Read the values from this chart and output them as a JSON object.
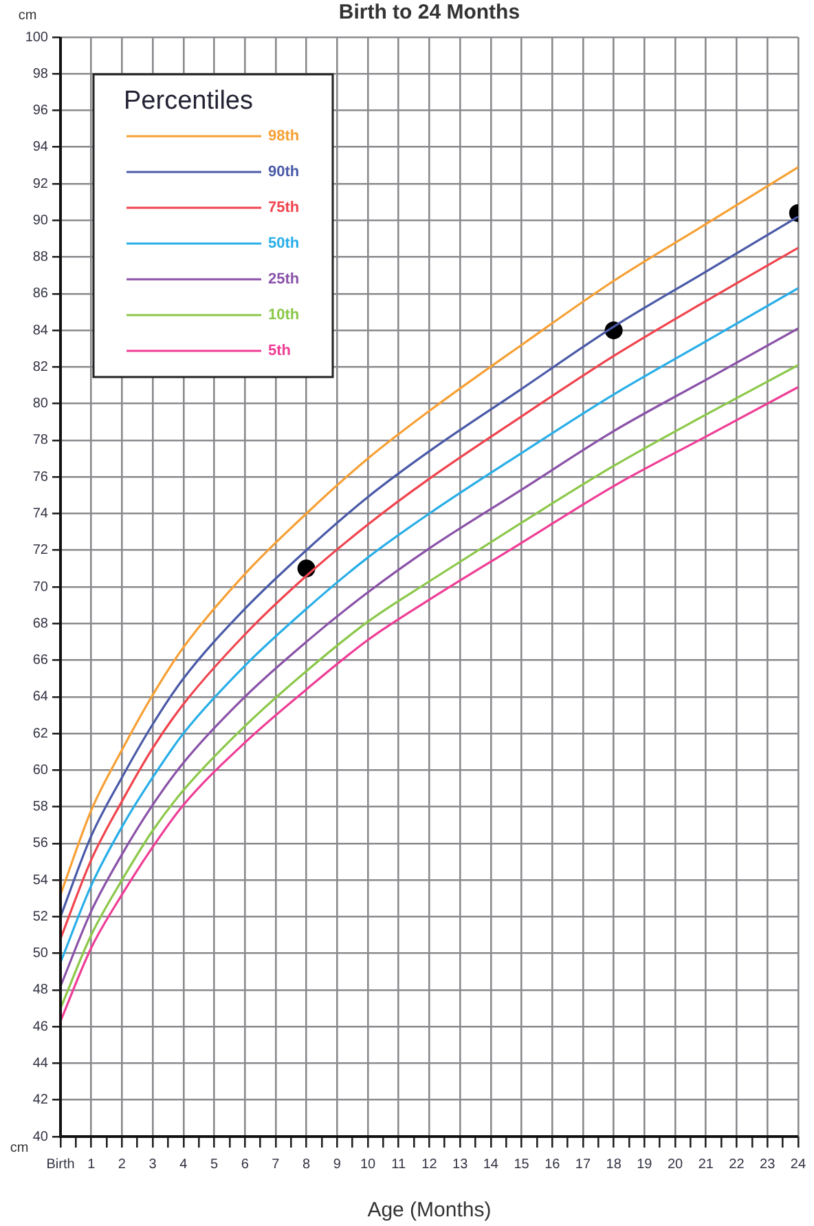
{
  "chart_data": {
    "type": "line",
    "title": "Birth to 24 Months",
    "xlabel": "Age (Months)",
    "ylabel": "cm",
    "legend_title": "Percentiles",
    "annotations": [
      "cm"
    ],
    "x": [
      0,
      1,
      2,
      3,
      4,
      6,
      8,
      10,
      12,
      15,
      18,
      21,
      24
    ],
    "series": [
      {
        "name": "98th",
        "color": "#f7a035",
        "values": [
          53.2,
          57.8,
          61.1,
          64.1,
          66.7,
          70.7,
          74.0,
          77.0,
          79.6,
          83.2,
          86.7,
          89.8,
          92.9
        ]
      },
      {
        "name": "90th",
        "color": "#4a5aa8",
        "values": [
          52.0,
          56.4,
          59.6,
          62.5,
          65.0,
          68.8,
          72.0,
          74.9,
          77.4,
          80.8,
          84.2,
          87.2,
          90.2
        ]
      },
      {
        "name": "75th",
        "color": "#f0444e",
        "values": [
          50.8,
          55.1,
          58.3,
          61.2,
          63.6,
          67.4,
          70.6,
          73.4,
          75.9,
          79.3,
          82.6,
          85.6,
          88.5
        ]
      },
      {
        "name": "50th",
        "color": "#29aee8",
        "values": [
          49.5,
          53.7,
          56.9,
          59.6,
          62.0,
          65.7,
          68.8,
          71.6,
          74.0,
          77.3,
          80.5,
          83.4,
          86.3
        ]
      },
      {
        "name": "25th",
        "color": "#8a52a8",
        "values": [
          48.2,
          52.3,
          55.4,
          58.1,
          60.4,
          64.0,
          67.0,
          69.7,
          72.1,
          75.3,
          78.5,
          81.3,
          84.1
        ]
      },
      {
        "name": "10th",
        "color": "#8cc84a",
        "values": [
          47.0,
          51.0,
          54.0,
          56.7,
          58.9,
          62.4,
          65.4,
          68.1,
          70.3,
          73.5,
          76.6,
          79.4,
          82.1
        ]
      },
      {
        "name": "5th",
        "color": "#ef3d96",
        "values": [
          46.3,
          50.3,
          53.2,
          55.8,
          58.1,
          61.5,
          64.4,
          67.1,
          69.3,
          72.4,
          75.5,
          78.2,
          80.9
        ]
      },
      {
        "type": "scatter",
        "color": "#000000",
        "marker": "circle",
        "x": [
          8,
          18,
          24
        ],
        "values": [
          71,
          84,
          90.4
        ]
      }
    ],
    "xlim": [
      0,
      24
    ],
    "xticks": [
      {
        "value": 0,
        "label": "Birth"
      },
      {
        "value": 0.5,
        "label": null
      },
      1,
      {
        "value": 1.5,
        "label": null
      },
      2,
      {
        "value": 2.5,
        "label": null
      },
      3,
      {
        "value": 3.5,
        "label": null
      },
      4,
      {
        "value": 4.5,
        "label": null
      },
      5,
      {
        "value": 5.5,
        "label": null
      },
      6,
      {
        "value": 6.5,
        "label": null
      },
      7,
      {
        "value": 7.5,
        "label": null
      },
      8,
      {
        "value": 8.5,
        "label": null
      },
      9,
      {
        "value": 9.5,
        "label": null
      },
      10,
      {
        "value": 10.5,
        "label": null
      },
      11,
      {
        "value": 11.5,
        "label": null
      },
      12,
      {
        "value": 12.5,
        "label": null
      },
      13,
      {
        "value": 13.5,
        "label": null
      },
      14,
      {
        "value": 14.5,
        "label": null
      },
      15,
      {
        "value": 15.5,
        "label": null
      },
      16,
      {
        "value": 16.5,
        "label": null
      },
      17,
      {
        "value": 17.5,
        "label": null
      },
      18,
      {
        "value": 18.5,
        "label": null
      },
      19,
      {
        "value": 19.5,
        "label": null
      },
      20,
      {
        "value": 20.5,
        "label": null
      },
      21,
      {
        "value": 21.5,
        "label": null
      },
      22,
      {
        "value": 22.5,
        "label": null
      },
      23,
      {
        "value": 23.5,
        "label": null
      },
      24
    ],
    "ylim": [
      40,
      100
    ],
    "yticks": [
      40,
      42,
      44,
      46,
      48,
      50,
      52,
      54,
      56,
      58,
      60,
      62,
      64,
      66,
      68,
      70,
      72,
      74,
      76,
      78,
      80,
      82,
      84,
      86,
      88,
      90,
      92,
      94,
      96,
      98,
      100
    ],
    "grid": true,
    "legend": "top left",
    "line_style": "solid"
  }
}
